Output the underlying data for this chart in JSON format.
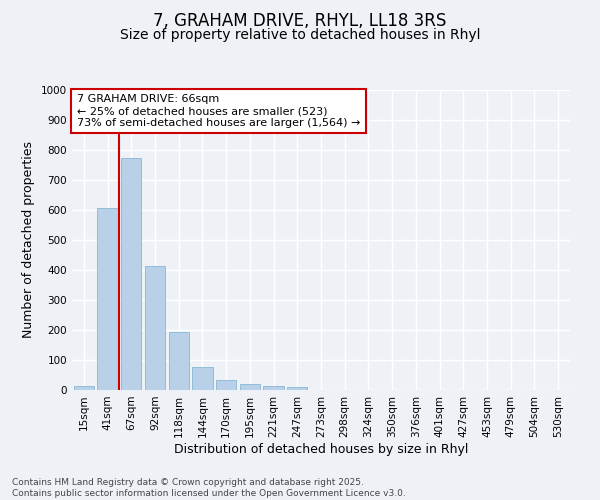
{
  "title1": "7, GRAHAM DRIVE, RHYL, LL18 3RS",
  "title2": "Size of property relative to detached houses in Rhyl",
  "xlabel": "Distribution of detached houses by size in Rhyl",
  "ylabel": "Number of detached properties",
  "bar_color": "#b8d0e8",
  "bar_edge_color": "#7aaed0",
  "categories": [
    "15sqm",
    "41sqm",
    "67sqm",
    "92sqm",
    "118sqm",
    "144sqm",
    "170sqm",
    "195sqm",
    "221sqm",
    "247sqm",
    "273sqm",
    "298sqm",
    "324sqm",
    "350sqm",
    "376sqm",
    "401sqm",
    "427sqm",
    "453sqm",
    "479sqm",
    "504sqm",
    "530sqm"
  ],
  "values": [
    15,
    607,
    775,
    412,
    192,
    78,
    35,
    20,
    15,
    10,
    0,
    0,
    0,
    0,
    0,
    0,
    0,
    0,
    0,
    0,
    0
  ],
  "ylim": [
    0,
    1000
  ],
  "yticks": [
    0,
    100,
    200,
    300,
    400,
    500,
    600,
    700,
    800,
    900,
    1000
  ],
  "property_line_color": "#cc0000",
  "annotation_text": "7 GRAHAM DRIVE: 66sqm\n← 25% of detached houses are smaller (523)\n73% of semi-detached houses are larger (1,564) →",
  "annotation_box_color": "#cc0000",
  "background_color": "#eef2f7",
  "grid_color": "#ffffff",
  "footer_text": "Contains HM Land Registry data © Crown copyright and database right 2025.\nContains public sector information licensed under the Open Government Licence v3.0.",
  "title1_fontsize": 12,
  "title2_fontsize": 10,
  "axis_label_fontsize": 9,
  "tick_fontsize": 7.5,
  "annotation_fontsize": 8
}
